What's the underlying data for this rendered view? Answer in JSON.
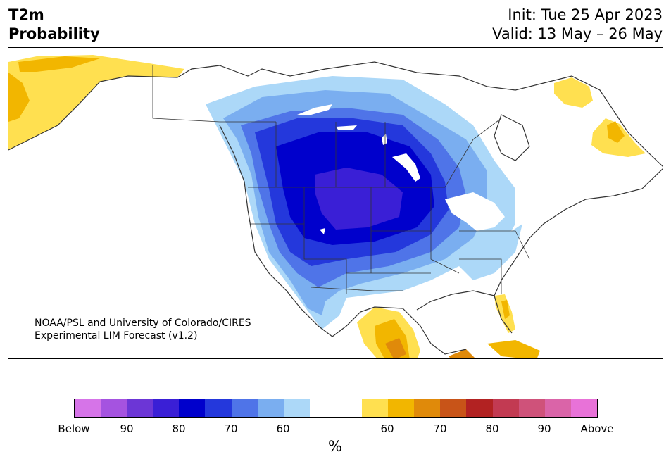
{
  "title": {
    "left_line1": "T2m",
    "left_line2": "Probability",
    "right_line1": "Init: Tue 25 Apr 2023",
    "right_line2": "Valid: 13 May – 26 May"
  },
  "credit": {
    "line1": "NOAA/PSL and University of Colorado/CIRES",
    "line2": "Experimental LIM Forecast (v1.2)"
  },
  "colorbar": {
    "colors": [
      "#d674e8",
      "#a553e0",
      "#6c36d6",
      "#3a1fd6",
      "#0000cc",
      "#2438dc",
      "#4f74e8",
      "#7aaef0",
      "#acd8f8",
      "#ffffff",
      "#ffffff",
      "#ffe050",
      "#f2b600",
      "#e08a0a",
      "#c85418",
      "#b22222",
      "#c23a52",
      "#cf527a",
      "#da64a8",
      "#e872d8"
    ],
    "ticks": [
      "Below",
      "90",
      "80",
      "70",
      "60",
      "60",
      "70",
      "80",
      "90",
      "Above"
    ],
    "unit": "%"
  }
}
